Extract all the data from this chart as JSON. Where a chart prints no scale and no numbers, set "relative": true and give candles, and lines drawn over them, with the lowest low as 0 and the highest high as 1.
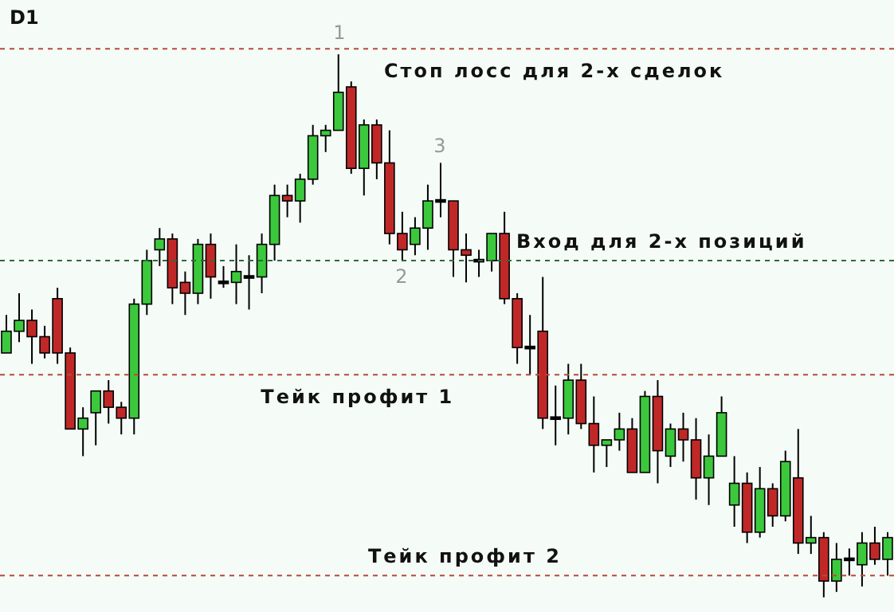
{
  "chart_data": {
    "type": "candlestick",
    "title": "D1",
    "relative": true,
    "tick_labels": false,
    "categories": [
      null,
      null,
      null,
      null,
      null,
      null,
      null,
      null,
      null,
      null,
      null,
      null,
      null,
      null,
      null,
      null,
      null,
      null,
      null,
      null,
      null,
      null,
      null,
      null,
      null,
      null,
      null,
      null,
      null,
      null,
      null,
      null,
      null,
      null,
      null,
      null,
      null,
      null,
      null,
      null,
      null,
      null,
      null,
      null,
      null,
      null,
      null,
      null,
      null,
      null,
      null,
      null,
      null,
      null,
      null,
      null,
      null,
      null,
      null,
      null,
      null,
      null,
      null,
      null,
      null,
      null,
      null,
      null,
      null,
      null
    ],
    "ohlc": [
      [
        0.45,
        0.52,
        0.45,
        0.49
      ],
      [
        0.49,
        0.56,
        0.47,
        0.51
      ],
      [
        0.51,
        0.53,
        0.43,
        0.48
      ],
      [
        0.48,
        0.5,
        0.44,
        0.45
      ],
      [
        0.55,
        0.57,
        0.43,
        0.45
      ],
      [
        0.45,
        0.46,
        0.31,
        0.31
      ],
      [
        0.31,
        0.35,
        0.26,
        0.33
      ],
      [
        0.34,
        0.38,
        0.28,
        0.38
      ],
      [
        0.38,
        0.4,
        0.32,
        0.35
      ],
      [
        0.35,
        0.36,
        0.3,
        0.33
      ],
      [
        0.33,
        0.55,
        0.3,
        0.54
      ],
      [
        0.54,
        0.64,
        0.52,
        0.62
      ],
      [
        0.64,
        0.68,
        0.61,
        0.66
      ],
      [
        0.66,
        0.67,
        0.54,
        0.57
      ],
      [
        0.58,
        0.6,
        0.52,
        0.56
      ],
      [
        0.56,
        0.66,
        0.54,
        0.65
      ],
      [
        0.65,
        0.67,
        0.55,
        0.59
      ],
      [
        0.58,
        0.61,
        0.57,
        0.58
      ],
      [
        0.58,
        0.65,
        0.54,
        0.6
      ],
      [
        0.59,
        0.63,
        0.53,
        0.59
      ],
      [
        0.59,
        0.67,
        0.56,
        0.65
      ],
      [
        0.65,
        0.76,
        0.62,
        0.74
      ],
      [
        0.74,
        0.76,
        0.7,
        0.73
      ],
      [
        0.73,
        0.78,
        0.69,
        0.77
      ],
      [
        0.77,
        0.87,
        0.76,
        0.85
      ],
      [
        0.85,
        0.87,
        0.82,
        0.86
      ],
      [
        0.86,
        1.0,
        0.86,
        0.93
      ],
      [
        0.94,
        0.95,
        0.78,
        0.79
      ],
      [
        0.79,
        0.88,
        0.74,
        0.87
      ],
      [
        0.87,
        0.88,
        0.77,
        0.8
      ],
      [
        0.8,
        0.86,
        0.65,
        0.67
      ],
      [
        0.67,
        0.71,
        0.62,
        0.64
      ],
      [
        0.65,
        0.7,
        0.63,
        0.68
      ],
      [
        0.68,
        0.76,
        0.64,
        0.73
      ],
      [
        0.73,
        0.8,
        0.7,
        0.73
      ],
      [
        0.73,
        0.73,
        0.59,
        0.64
      ],
      [
        0.64,
        0.67,
        0.58,
        0.63
      ],
      [
        0.62,
        0.64,
        0.59,
        0.62
      ],
      [
        0.62,
        0.67,
        0.6,
        0.67
      ],
      [
        0.67,
        0.71,
        0.54,
        0.55
      ],
      [
        0.55,
        0.56,
        0.43,
        0.46
      ],
      [
        0.46,
        0.52,
        0.41,
        0.46
      ],
      [
        0.49,
        0.59,
        0.31,
        0.33
      ],
      [
        0.33,
        0.39,
        0.28,
        0.33
      ],
      [
        0.33,
        0.43,
        0.3,
        0.4
      ],
      [
        0.4,
        0.43,
        0.31,
        0.32
      ],
      [
        0.32,
        0.37,
        0.23,
        0.28
      ],
      [
        0.28,
        0.29,
        0.24,
        0.29
      ],
      [
        0.29,
        0.34,
        0.27,
        0.31
      ],
      [
        0.31,
        0.33,
        0.23,
        0.23
      ],
      [
        0.23,
        0.38,
        0.23,
        0.37
      ],
      [
        0.37,
        0.4,
        0.21,
        0.27
      ],
      [
        0.26,
        0.32,
        0.24,
        0.31
      ],
      [
        0.31,
        0.34,
        0.25,
        0.29
      ],
      [
        0.29,
        0.33,
        0.18,
        0.22
      ],
      [
        0.22,
        0.3,
        0.17,
        0.26
      ],
      [
        0.26,
        0.37,
        0.26,
        0.34
      ],
      [
        0.17,
        0.26,
        0.13,
        0.21
      ],
      [
        0.21,
        0.23,
        0.1,
        0.12
      ],
      [
        0.12,
        0.24,
        0.11,
        0.2
      ],
      [
        0.2,
        0.21,
        0.13,
        0.15
      ],
      [
        0.15,
        0.27,
        0.14,
        0.25
      ],
      [
        0.22,
        0.31,
        0.08,
        0.1
      ],
      [
        0.1,
        0.15,
        0.08,
        0.11
      ],
      [
        0.11,
        0.12,
        0.0,
        0.03
      ],
      [
        0.03,
        0.1,
        0.01,
        0.07
      ],
      [
        0.07,
        0.09,
        0.04,
        0.07
      ],
      [
        0.06,
        0.12,
        0.02,
        0.1
      ],
      [
        0.1,
        0.13,
        0.06,
        0.07
      ],
      [
        0.07,
        0.12,
        0.04,
        0.11
      ]
    ],
    "colors": [
      "#3cc83c",
      "#3cc83c",
      "#c02828",
      "#c02828",
      "#c02828",
      "#c02828",
      "#3cc83c",
      "#3cc83c",
      "#c02828",
      "#c02828",
      "#3cc83c",
      "#3cc83c",
      "#3cc83c",
      "#c02828",
      "#c02828",
      "#3cc83c",
      "#c02828",
      "#000000",
      "#3cc83c",
      "#000000",
      "#3cc83c",
      "#3cc83c",
      "#c02828",
      "#3cc83c",
      "#3cc83c",
      "#3cc83c",
      "#3cc83c",
      "#c02828",
      "#3cc83c",
      "#c02828",
      "#c02828",
      "#c02828",
      "#3cc83c",
      "#3cc83c",
      "#000000",
      "#c02828",
      "#c02828",
      "#000000",
      "#3cc83c",
      "#c02828",
      "#c02828",
      "#000000",
      "#c02828",
      "#000000",
      "#3cc83c",
      "#c02828",
      "#c02828",
      "#3cc83c",
      "#3cc83c",
      "#c02828",
      "#3cc83c",
      "#c02828",
      "#3cc83c",
      "#c02828",
      "#c02828",
      "#3cc83c",
      "#3cc83c",
      "#3cc83c",
      "#c02828",
      "#3cc83c",
      "#c02828",
      "#3cc83c",
      "#c02828",
      "#3cc83c",
      "#c02828",
      "#3cc83c",
      "#000000",
      "#3cc83c",
      "#c02828",
      "#3cc83c"
    ],
    "ref_lines": [
      {
        "axis": "y",
        "value": 1.01,
        "label": "Стоп лосс для 2-х сделок",
        "color": "#b84a3a",
        "line_style": "dashed"
      },
      {
        "axis": "y",
        "value": 0.62,
        "label": "Вход для 2-х позиций",
        "color": "#2e6a3a",
        "line_style": "dashed"
      },
      {
        "axis": "y",
        "value": 0.41,
        "label": "Тейк профит 1",
        "color": "#b84a3a",
        "line_style": "dashed"
      },
      {
        "axis": "y",
        "value": 0.04,
        "label": "Тейк профит 2",
        "color": "#b84a3a",
        "line_style": "dashed"
      }
    ],
    "annotations": [
      "1",
      "2",
      "3"
    ]
  }
}
